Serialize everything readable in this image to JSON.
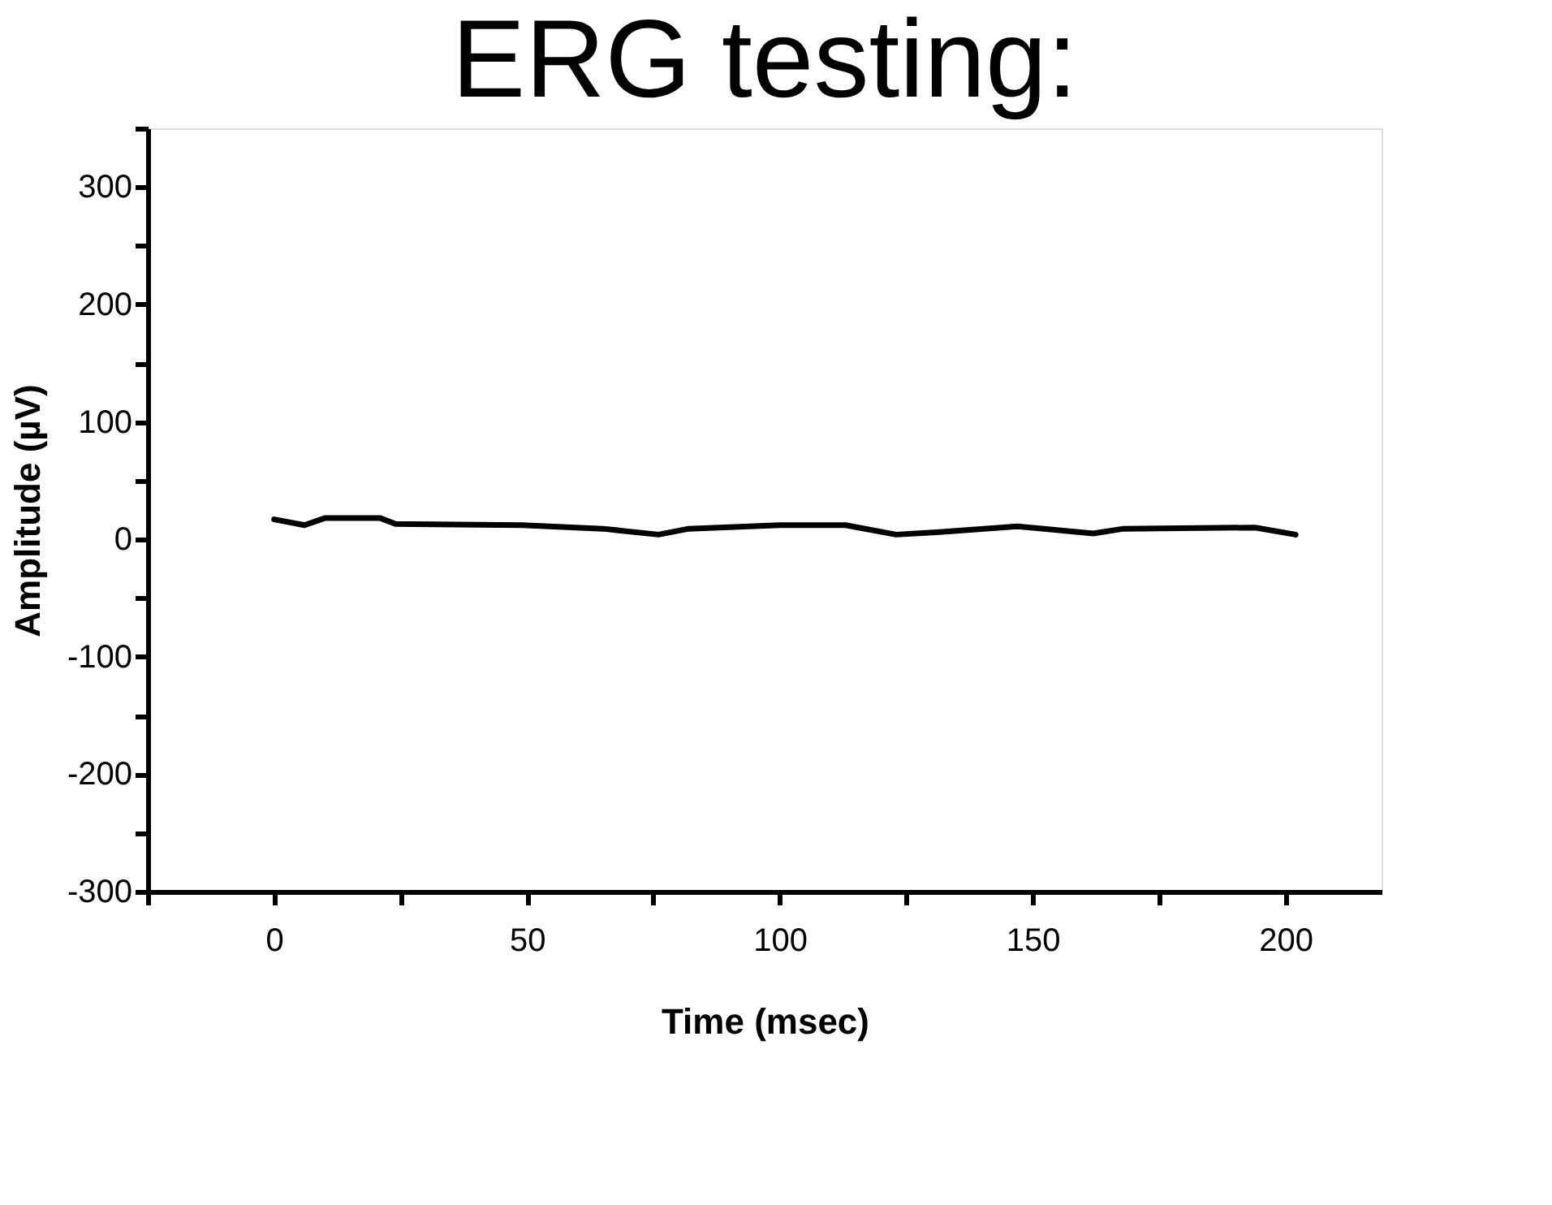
{
  "chart_data": {
    "type": "line",
    "title": "ERG testing:",
    "xlabel": "Time (msec)",
    "ylabel": "Amplitude (µV)",
    "x": [
      0,
      6,
      10,
      21,
      24,
      49,
      65,
      76,
      82,
      100,
      113,
      123,
      131,
      147,
      162,
      168,
      194,
      202
    ],
    "series": [
      {
        "color": "#000000",
        "values": [
          17,
          12,
          18,
          18,
          13,
          12,
          9,
          4,
          9,
          12,
          12,
          4,
          6,
          11,
          5,
          9,
          10,
          4
        ]
      }
    ],
    "xlim": [
      -25,
      219
    ],
    "xticks": [
      {
        "value": -25,
        "label": null
      },
      0,
      {
        "value": 25,
        "label": null
      },
      50,
      {
        "value": 75,
        "label": null
      },
      100,
      {
        "value": 125,
        "label": null
      },
      150,
      {
        "value": 175,
        "label": null
      },
      200
    ],
    "ylim": [
      -300,
      350
    ],
    "yticks": [
      -300,
      {
        "value": -250,
        "label": null
      },
      -200,
      {
        "value": -150,
        "label": null
      },
      -100,
      {
        "value": -50,
        "label": null
      },
      0,
      {
        "value": 50,
        "label": null
      },
      100,
      {
        "value": 150,
        "label": null
      },
      200,
      {
        "value": 250,
        "label": null
      },
      300,
      {
        "value": 350,
        "label": null
      }
    ],
    "grid": false,
    "marker": "none",
    "line_style": "solid"
  }
}
